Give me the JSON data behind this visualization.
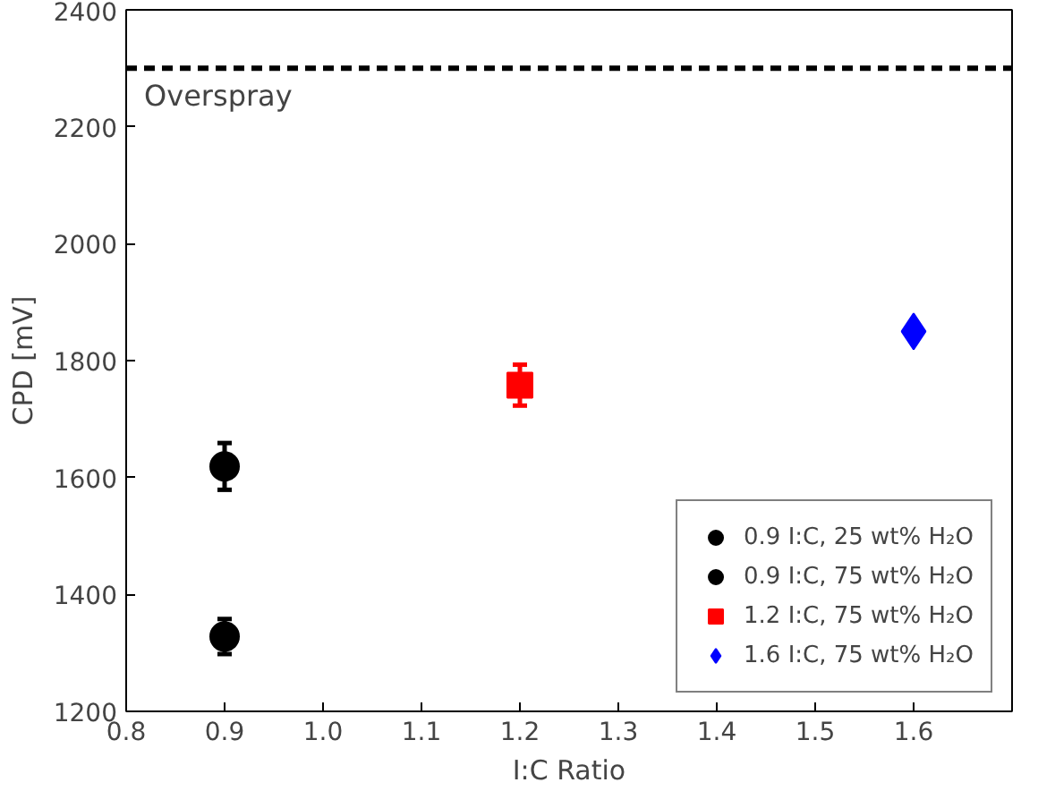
{
  "chart_data": {
    "type": "scatter",
    "xlabel": "I:C Ratio",
    "ylabel": "CPD [mV]",
    "xlim": [
      0.8,
      1.7
    ],
    "ylim": [
      1200,
      2400
    ],
    "xticks": [
      0.8,
      0.9,
      {
        "value": 1.0,
        "label": "1.0"
      },
      1.1,
      1.2,
      1.3,
      1.4,
      1.5,
      1.6
    ],
    "yticks": [
      1200,
      1400,
      1600,
      1800,
      2000,
      2200,
      2400
    ],
    "grid": false,
    "legend": "bottom right",
    "series": [
      {
        "name": "0.9 I:C, 25 wt% H₂O",
        "color": "#000000",
        "x": [
          0.9
        ],
        "values": [
          1328
        ],
        "errors": [
          30
        ],
        "marker": "circle"
      },
      {
        "name": "0.9 I:C, 75 wt% H₂O",
        "color": "#000000",
        "x": [
          0.9
        ],
        "values": [
          1619
        ],
        "errors": [
          40
        ],
        "marker": "circle"
      },
      {
        "name": "1.2 I:C, 75 wt% H₂O",
        "color": "#ff0000",
        "x": [
          1.2
        ],
        "values": [
          1758
        ],
        "errors": [
          35
        ],
        "marker": "square"
      },
      {
        "name": "1.6 I:C, 75 wt% H₂O",
        "color": "#0000ff",
        "x": [
          1.6
        ],
        "values": [
          1850
        ],
        "errors": [
          null
        ],
        "marker": "diamond"
      }
    ],
    "ref_lines": [
      {
        "axis": "y",
        "value": 2300,
        "label": "Overspray",
        "color": "#000000",
        "line_style": "dashed"
      }
    ]
  }
}
